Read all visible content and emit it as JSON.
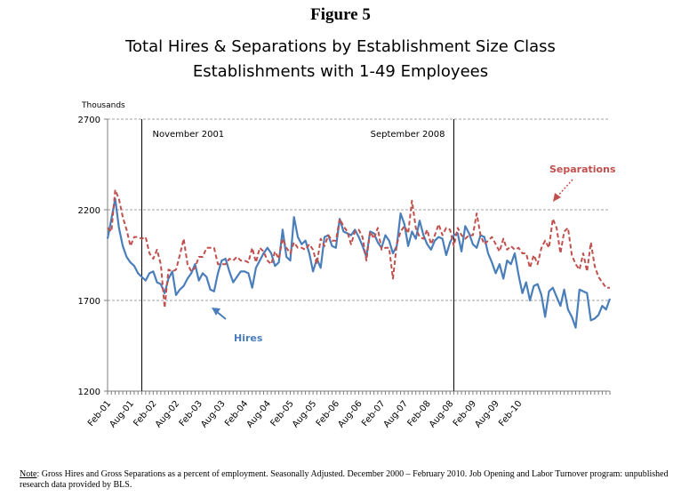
{
  "figure_label": "Figure 5",
  "title_line1": "Total Hires & Separations by Establishment Size Class",
  "title_line2": "Establishments with 1-49 Employees",
  "note": {
    "label": "Note",
    "text": ":  Gross Hires and Gross Separations as a percent of employment. Seasonally Adjusted. December 2000 – February 2010. Job Opening and Labor Turnover program: unpublished research data provided by BLS."
  },
  "colors": {
    "hires": "#4a7ebb",
    "separations": "#c0504d",
    "grid": "#a0a0a0",
    "axis": "#7f7f7f"
  },
  "chart_data": {
    "type": "line",
    "ylabel": "Thousands",
    "ylim": [
      1200,
      2700
    ],
    "yticks": [
      1200,
      1700,
      2200,
      2700
    ],
    "grid": true,
    "start_month": "2001-02",
    "xtick_labels": [
      "Feb-01",
      "Aug-01",
      "Feb-02",
      "Aug-02",
      "Feb-03",
      "Aug-03",
      "Feb-04",
      "Aug-04",
      "Feb-05",
      "Aug-05",
      "Feb-06",
      "Aug-06",
      "Feb-07",
      "Aug-07",
      "Feb-08",
      "Aug-08",
      "Feb-09",
      "Aug-09",
      "Feb-10"
    ],
    "vlines": [
      {
        "month": "2001-11",
        "label": "November 2001"
      },
      {
        "month": "2008-09",
        "label": "September 2008"
      }
    ],
    "annotations": [
      {
        "text": "Separations",
        "series": "separations"
      },
      {
        "text": "Hires",
        "series": "hires"
      }
    ],
    "series": [
      {
        "name": "Hires",
        "key": "hires",
        "style": "solid",
        "values": [
          2040,
          2150,
          2260,
          2100,
          2000,
          1940,
          1910,
          1890,
          1850,
          1830,
          1810,
          1850,
          1860,
          1800,
          1790,
          1740,
          1820,
          1860,
          1730,
          1760,
          1780,
          1820,
          1850,
          1900,
          1810,
          1850,
          1830,
          1760,
          1750,
          1850,
          1920,
          1930,
          1860,
          1800,
          1830,
          1860,
          1860,
          1850,
          1770,
          1880,
          1920,
          1960,
          1990,
          1960,
          1890,
          1910,
          2090,
          1940,
          1920,
          2160,
          2050,
          2010,
          2030,
          1960,
          1860,
          1930,
          1880,
          2050,
          2060,
          2000,
          1990,
          2150,
          2080,
          2070,
          2060,
          2090,
          2050,
          2000,
          1940,
          2080,
          2070,
          2020,
          1990,
          2060,
          2030,
          1960,
          2000,
          2180,
          2120,
          2000,
          2080,
          2040,
          2140,
          2060,
          2010,
          1980,
          2030,
          2050,
          2040,
          1950,
          2020,
          2060,
          2070,
          1970,
          2110,
          2070,
          2010,
          1990,
          2060,
          2050,
          1960,
          1910,
          1850,
          1900,
          1820,
          1920,
          1900,
          1960,
          1840,
          1740,
          1800,
          1700,
          1780,
          1790,
          1730,
          1610,
          1750,
          1770,
          1720,
          1670,
          1760,
          1650,
          1610,
          1550,
          1760,
          1750,
          1740,
          1590,
          1600,
          1620,
          1670,
          1650,
          1710
        ]
      },
      {
        "name": "Separations",
        "key": "separations",
        "style": "dashed",
        "values": [
          2100,
          2080,
          2310,
          2260,
          2160,
          2090,
          2000,
          2050,
          2050,
          2040,
          2050,
          1960,
          1930,
          1980,
          1900,
          1660,
          1870,
          1860,
          1870,
          1950,
          2040,
          1900,
          1860,
          1880,
          1940,
          1940,
          1990,
          1990,
          1990,
          1900,
          1900,
          1900,
          1930,
          1920,
          1940,
          1920,
          1920,
          1910,
          1990,
          1910,
          1990,
          1970,
          1920,
          1900,
          1970,
          1930,
          2040,
          1990,
          1960,
          2020,
          1990,
          1990,
          1980,
          2010,
          1980,
          1900,
          2040,
          2000,
          2060,
          2030,
          2030,
          2150,
          2110,
          2080,
          2010,
          2080,
          2090,
          2050,
          1920,
          2080,
          2040,
          2100,
          1980,
          1990,
          1990,
          1820,
          2010,
          2080,
          2110,
          2070,
          2250,
          2100,
          2050,
          2040,
          2090,
          2010,
          2060,
          2120,
          2060,
          2100,
          2090,
          2000,
          2100,
          2060,
          2040,
          2060,
          2060,
          2180,
          2060,
          2010,
          2030,
          2050,
          2010,
          1970,
          2040,
          1980,
          2000,
          1980,
          1990,
          1960,
          1960,
          1880,
          1950,
          1900,
          1990,
          2030,
          1990,
          2150,
          2100,
          1960,
          2080,
          2100,
          1950,
          1900,
          1870,
          1960,
          1860,
          2020,
          1890,
          1830,
          1800,
          1770,
          1770
        ]
      }
    ]
  }
}
